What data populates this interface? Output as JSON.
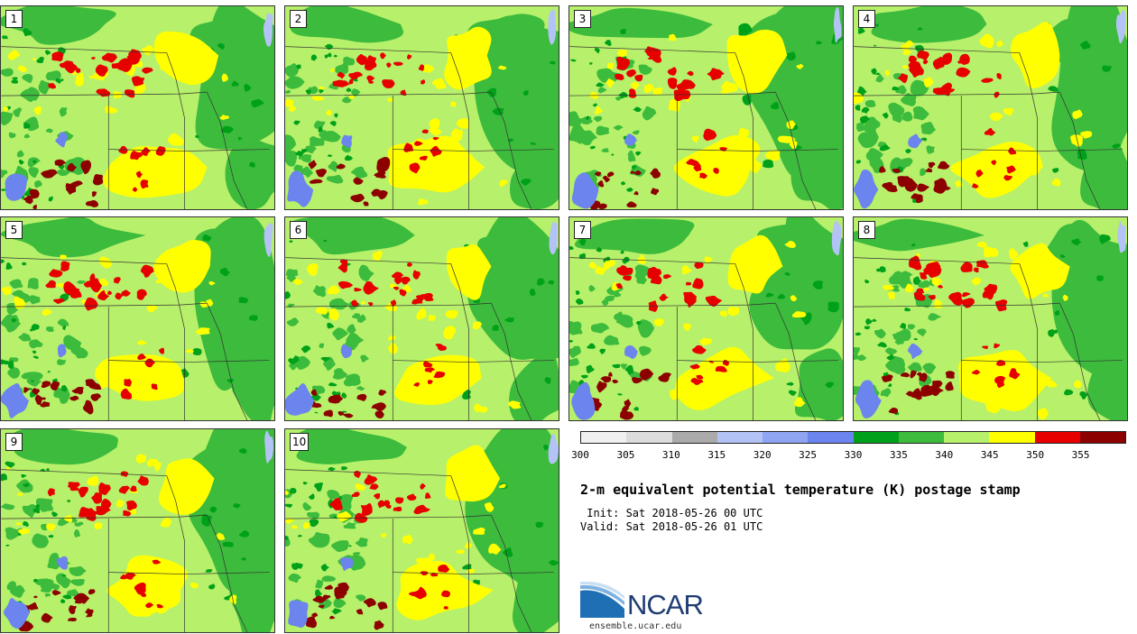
{
  "title": "2-m equivalent potential temperature (K) postage stamp",
  "init_line": " Init: Sat 2018-05-26 00 UTC",
  "valid_line": "Valid: Sat 2018-05-26 01 UTC",
  "footer_url": "ensemble.ucar.edu",
  "logo_text": "NCAR",
  "panels": [
    {
      "label": "1",
      "seed": 11
    },
    {
      "label": "2",
      "seed": 23
    },
    {
      "label": "3",
      "seed": 37
    },
    {
      "label": "4",
      "seed": 41
    },
    {
      "label": "5",
      "seed": 53
    },
    {
      "label": "6",
      "seed": 67
    },
    {
      "label": "7",
      "seed": 71
    },
    {
      "label": "8",
      "seed": 83
    },
    {
      "label": "9",
      "seed": 97
    },
    {
      "label": "10",
      "seed": 103
    }
  ],
  "colorbar": {
    "colors": [
      "#f0f0f0",
      "#dcdcdc",
      "#aaaaaa",
      "#b3c3f5",
      "#8fa5f2",
      "#6b84ee",
      "#00a11a",
      "#3cbb3c",
      "#b7f06a",
      "#ffff00",
      "#e60000",
      "#8c0000"
    ],
    "tick_labels": [
      "300",
      "305",
      "310",
      "315",
      "320",
      "325",
      "330",
      "335",
      "340",
      "345",
      "350",
      "355"
    ]
  },
  "map_colors": {
    "base": "#b7f06a",
    "mid_green": "#3cbb3c",
    "dark_green": "#00a11a",
    "yellow": "#ffff00",
    "red": "#e60000",
    "dark_red": "#8c0000",
    "lake_blue": "#6b84ee",
    "light_blue": "#b3c3f5",
    "border": "#333333"
  }
}
